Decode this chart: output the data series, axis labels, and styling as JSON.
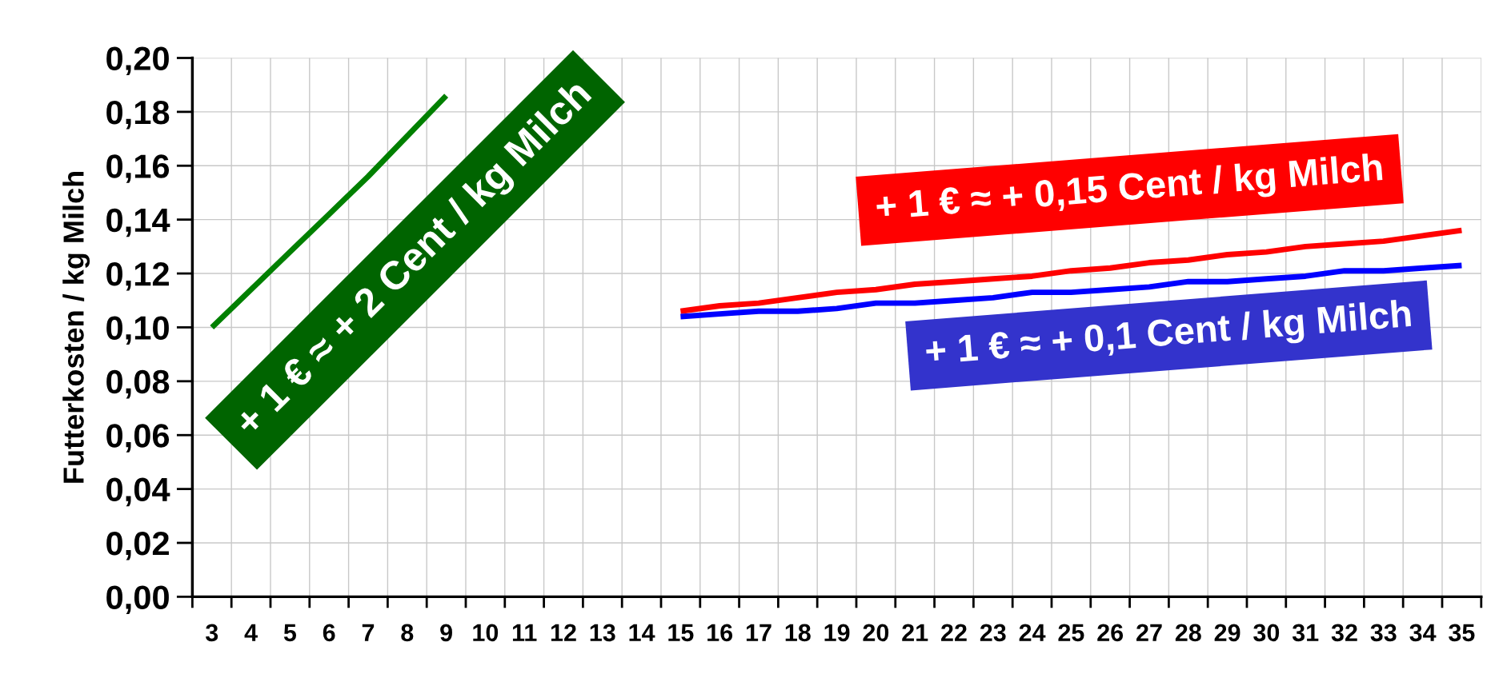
{
  "chart_data": {
    "type": "line",
    "ylabel": "Futterkosten / kg Milch",
    "categories": [
      "3",
      "4",
      "5",
      "6",
      "7",
      "8",
      "9",
      "10",
      "11",
      "12",
      "13",
      "14",
      "15",
      "16",
      "17",
      "18",
      "19",
      "20",
      "21",
      "22",
      "23",
      "24",
      "25",
      "26",
      "27",
      "28",
      "29",
      "30",
      "31",
      "32",
      "33",
      "34",
      "35"
    ],
    "series": [
      {
        "color": "#008000",
        "values": [
          0.1,
          0.114,
          0.128,
          0.142,
          0.156,
          0.171,
          0.186,
          null,
          null,
          null,
          null,
          null,
          null,
          null,
          null,
          null,
          null,
          null,
          null,
          null,
          null,
          null,
          null,
          null,
          null,
          null,
          null,
          null,
          null,
          null,
          null,
          null,
          null
        ]
      },
      {
        "color": "#ff0000",
        "values": [
          null,
          null,
          null,
          null,
          null,
          null,
          null,
          null,
          null,
          null,
          null,
          null,
          0.106,
          0.108,
          0.109,
          0.111,
          0.113,
          0.114,
          0.116,
          0.117,
          0.118,
          0.119,
          0.121,
          0.122,
          0.124,
          0.125,
          0.127,
          0.128,
          0.13,
          0.131,
          0.132,
          0.134,
          0.136
        ]
      },
      {
        "color": "#0000ff",
        "values": [
          null,
          null,
          null,
          null,
          null,
          null,
          null,
          null,
          null,
          null,
          null,
          null,
          0.104,
          0.105,
          0.106,
          0.106,
          0.107,
          0.109,
          0.109,
          0.11,
          0.111,
          0.113,
          0.113,
          0.114,
          0.115,
          0.117,
          0.117,
          0.118,
          0.119,
          0.121,
          0.121,
          0.122,
          0.123
        ]
      }
    ],
    "ylim": [
      0,
      0.2
    ],
    "yticks": [
      {
        "value": 0,
        "label": "0,00"
      },
      {
        "value": 0.02,
        "label": "0,02"
      },
      {
        "value": 0.04,
        "label": "0,04"
      },
      {
        "value": 0.06,
        "label": "0,06"
      },
      {
        "value": 0.08,
        "label": "0,08"
      },
      {
        "value": 0.1,
        "label": "0,10"
      },
      {
        "value": 0.12,
        "label": "0,12"
      },
      {
        "value": 0.14,
        "label": "0,14"
      },
      {
        "value": 0.16,
        "label": "0,16"
      },
      {
        "value": 0.18,
        "label": "0,18"
      },
      {
        "value": 0.2,
        "label": "0,20"
      }
    ],
    "grid": true,
    "annotations": [
      "+ 1 € ≈ + 2 Cent / kg Milch",
      "+ 1 € ≈ + 0,15 Cent / kg Milch",
      "+ 1 € ≈ + 0,1 Cent / kg Milch"
    ]
  }
}
